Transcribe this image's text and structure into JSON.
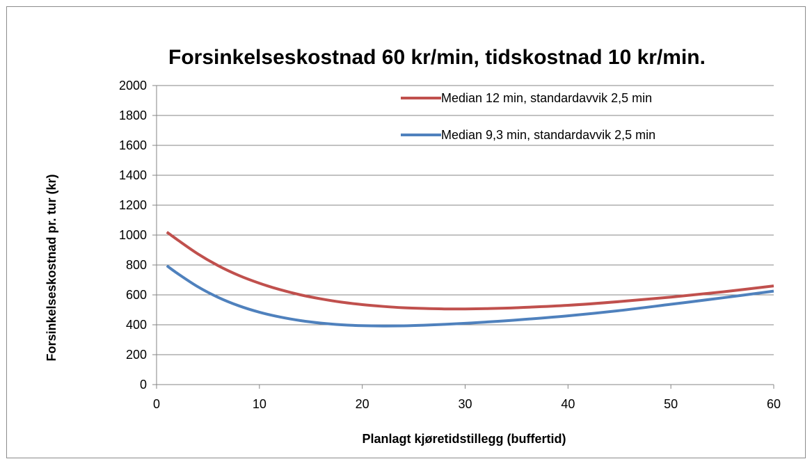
{
  "chart_data": {
    "type": "line",
    "title": "Forsinkelseskostnad 60 kr/min, tidskostnad 10 kr/min.",
    "xlabel": "Planlagt kjøretidstillegg (buffertid)",
    "ylabel": "Forsinkelseskostnad pr. tur (kr)",
    "xlim": [
      0,
      60
    ],
    "ylim": [
      0,
      2000
    ],
    "x_ticks": [
      "0",
      "10",
      "20",
      "30",
      "40",
      "50",
      "60"
    ],
    "y_ticks": [
      "0",
      "200",
      "400",
      "600",
      "800",
      "1000",
      "1200",
      "1400",
      "1600",
      "1800",
      "2000"
    ],
    "grid": "horizontal",
    "legend_position": "top-right",
    "series": [
      {
        "name": "Median 12 min, standardavvik 2,5 min",
        "color": "#c0504d",
        "x": [
          1,
          2,
          4,
          6,
          8,
          10,
          12,
          14,
          16,
          18,
          20,
          22,
          24,
          26,
          28,
          30,
          32,
          35,
          40,
          45,
          50,
          55,
          60
        ],
        "y": [
          1020,
          970,
          875,
          795,
          730,
          678,
          635,
          600,
          573,
          551,
          535,
          523,
          514,
          509,
          506,
          506,
          508,
          514,
          530,
          555,
          585,
          620,
          660
        ]
      },
      {
        "name": "Median 9,3 min, standardavvik 2,5 min",
        "color": "#4f81bd",
        "x": [
          1,
          2,
          4,
          6,
          8,
          10,
          12,
          14,
          16,
          18,
          20,
          22,
          24,
          26,
          28,
          30,
          32,
          35,
          40,
          45,
          50,
          55,
          60
        ],
        "y": [
          795,
          745,
          655,
          583,
          527,
          484,
          452,
          428,
          411,
          400,
          394,
          392,
          393,
          397,
          403,
          410,
          418,
          432,
          460,
          495,
          537,
          580,
          625
        ]
      }
    ]
  }
}
